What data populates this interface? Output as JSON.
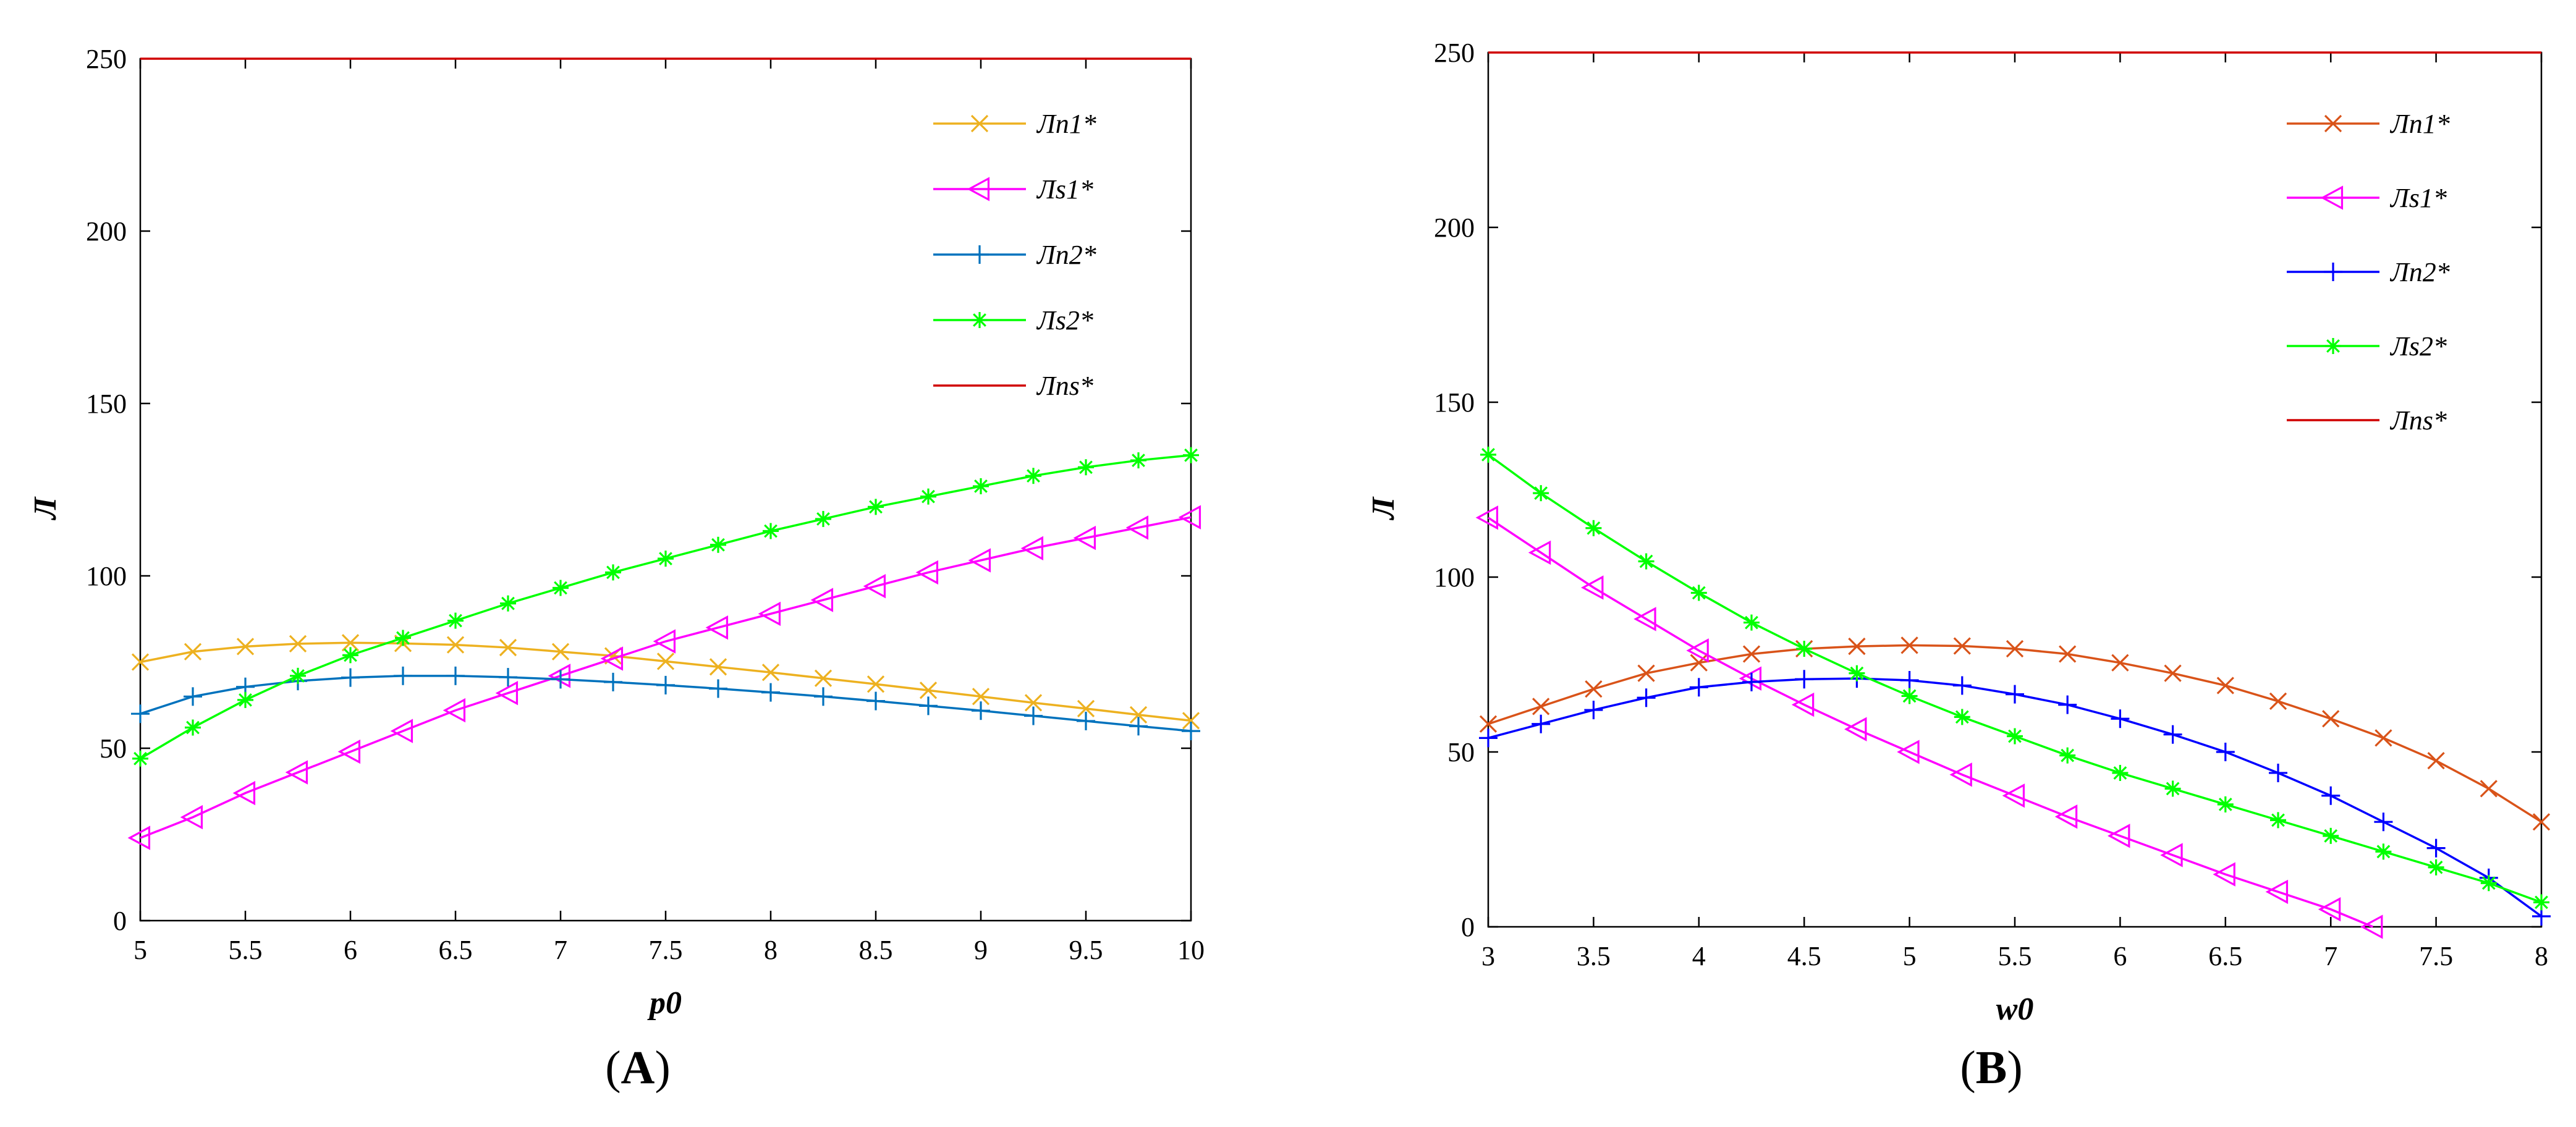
{
  "chart_data": [
    {
      "type": "line",
      "panel_label": "(A)",
      "panel_letter": "A",
      "xlabel": "p0",
      "ylabel": "Л",
      "xlim": [
        5,
        10
      ],
      "ylim": [
        0,
        250
      ],
      "xticks": [
        "5",
        "5.5",
        "6",
        "6.5",
        "7",
        "7.5",
        "8",
        "8.5",
        "9",
        "9.5",
        "10"
      ],
      "yticks": [
        "0",
        "50",
        "100",
        "150",
        "200",
        "250"
      ],
      "legend_position": "top-right",
      "series": [
        {
          "name": "Лn1*",
          "color": "#EDB120",
          "marker": "x",
          "x": [
            5,
            5.25,
            5.5,
            5.75,
            6,
            6.25,
            6.5,
            6.75,
            7,
            7.25,
            7.5,
            7.75,
            8,
            8.25,
            8.5,
            8.75,
            9,
            9.25,
            9.5,
            9.75,
            10
          ],
          "y": [
            75,
            78,
            79.5,
            80.3,
            80.6,
            80.4,
            80,
            79.2,
            78,
            76.8,
            75.2,
            73.6,
            72,
            70.3,
            68.6,
            66.8,
            65,
            63.2,
            61.5,
            59.7,
            58
          ]
        },
        {
          "name": "Лs1*",
          "color": "#FF00FF",
          "marker": "triangle-left",
          "x": [
            5,
            5.25,
            5.5,
            5.75,
            6,
            6.25,
            6.5,
            6.75,
            7,
            7.25,
            7.5,
            7.75,
            8,
            8.25,
            8.5,
            8.75,
            9,
            9.25,
            9.5,
            9.75,
            10
          ],
          "y": [
            24,
            30,
            37,
            43,
            49,
            55,
            61,
            66,
            71,
            76,
            81,
            85,
            89,
            93,
            97,
            101,
            104.5,
            108,
            111,
            114,
            117
          ]
        },
        {
          "name": "Лn2*",
          "color": "#0072BD",
          "marker": "plus",
          "x": [
            5,
            5.25,
            5.5,
            5.75,
            6,
            6.25,
            6.5,
            6.75,
            7,
            7.25,
            7.5,
            7.75,
            8,
            8.25,
            8.5,
            8.75,
            9,
            9.25,
            9.5,
            9.75,
            10
          ],
          "y": [
            60,
            65,
            67.8,
            69.5,
            70.5,
            71,
            71,
            70.6,
            70,
            69.2,
            68.3,
            67.3,
            66.2,
            65,
            63.7,
            62.3,
            60.9,
            59.4,
            57.9,
            56.4,
            55
          ]
        },
        {
          "name": "Лs2*",
          "color": "#00FF00",
          "marker": "asterisk",
          "x": [
            5,
            5.25,
            5.5,
            5.75,
            6,
            6.25,
            6.5,
            6.75,
            7,
            7.25,
            7.5,
            7.75,
            8,
            8.25,
            8.5,
            8.75,
            9,
            9.25,
            9.5,
            9.75,
            10
          ],
          "y": [
            47,
            56,
            64,
            71,
            77,
            82,
            87,
            92,
            96.5,
            101,
            105,
            109,
            113,
            116.5,
            120,
            123,
            126,
            129,
            131.5,
            133.5,
            135
          ]
        },
        {
          "name": "Лns*",
          "color": "#D00000",
          "marker": "none",
          "x": [
            5,
            10
          ],
          "y": [
            250,
            250
          ]
        }
      ]
    },
    {
      "type": "line",
      "panel_label": "(B)",
      "panel_letter": "B",
      "xlabel": "w0",
      "ylabel": "Л",
      "xlim": [
        3,
        8
      ],
      "ylim": [
        0,
        250
      ],
      "xticks": [
        "3",
        "3.5",
        "4",
        "4.5",
        "5",
        "5.5",
        "6",
        "6.5",
        "7",
        "7.5",
        "8"
      ],
      "yticks": [
        "0",
        "50",
        "100",
        "150",
        "200",
        "250"
      ],
      "legend_position": "top-right",
      "series": [
        {
          "name": "Лn1*",
          "color": "#D95319",
          "marker": "x",
          "x": [
            3,
            3.25,
            3.5,
            3.75,
            4,
            4.25,
            4.5,
            4.75,
            5,
            5.25,
            5.5,
            5.75,
            6,
            6.25,
            6.5,
            6.75,
            7,
            7.25,
            7.5,
            7.75,
            8
          ],
          "y": [
            58,
            63,
            68,
            72.5,
            75.5,
            78,
            79.5,
            80.2,
            80.5,
            80.3,
            79.5,
            78,
            75.5,
            72.5,
            69,
            64.5,
            59.5,
            54,
            47.5,
            39.5,
            30
          ]
        },
        {
          "name": "Лs1*",
          "color": "#FF00FF",
          "marker": "triangle-left",
          "x": [
            3,
            3.25,
            3.5,
            3.75,
            4,
            4.25,
            4.5,
            4.75,
            5,
            5.25,
            5.5,
            5.75,
            6,
            6.25,
            6.5,
            6.75,
            7,
            7.2
          ],
          "y": [
            117,
            107,
            97,
            88,
            79,
            71,
            63.5,
            56.5,
            50,
            43.5,
            37.5,
            31.5,
            26,
            20.5,
            15,
            10,
            5,
            0
          ]
        },
        {
          "name": "Лn2*",
          "color": "#0000FF",
          "marker": "plus",
          "x": [
            3,
            3.25,
            3.5,
            3.75,
            4,
            4.25,
            4.5,
            4.75,
            5,
            5.25,
            5.5,
            5.75,
            6,
            6.25,
            6.5,
            6.75,
            7,
            7.25,
            7.5,
            7.75,
            8
          ],
          "y": [
            54,
            58,
            62,
            65.5,
            68.5,
            70,
            70.8,
            71,
            70.5,
            69,
            66.5,
            63.5,
            59.5,
            55,
            50,
            44,
            37.5,
            30,
            22.5,
            14,
            3
          ]
        },
        {
          "name": "Лs2*",
          "color": "#00FF00",
          "marker": "asterisk",
          "x": [
            3,
            3.25,
            3.5,
            3.75,
            4,
            4.25,
            4.5,
            4.75,
            5,
            5.25,
            5.5,
            5.75,
            6,
            6.25,
            6.5,
            6.75,
            7,
            7.25,
            7.5,
            7.75,
            8
          ],
          "y": [
            135,
            124,
            114,
            104.5,
            95.5,
            87,
            79.5,
            72.5,
            66,
            60,
            54.5,
            49,
            44,
            39.5,
            35,
            30.5,
            26,
            21.5,
            17,
            12.5,
            7
          ]
        },
        {
          "name": "Лns*",
          "color": "#D00000",
          "marker": "none",
          "x": [
            3,
            8
          ],
          "y": [
            250,
            250
          ]
        }
      ]
    }
  ]
}
